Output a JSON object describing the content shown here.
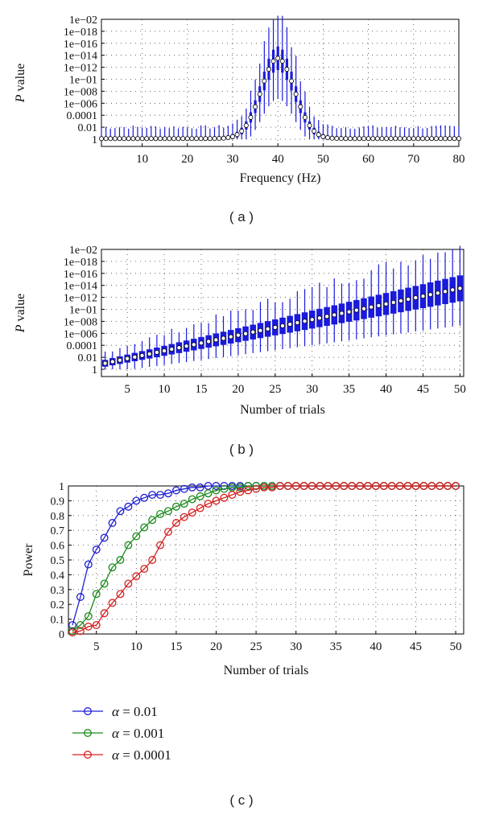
{
  "chart_data": [
    {
      "id": "a",
      "type": "boxplot",
      "caption": "( a )",
      "xlabel": "Frequency (Hz)",
      "ylabel": "P value",
      "xlim": [
        1,
        80
      ],
      "xticks": [
        10,
        20,
        30,
        40,
        50,
        60,
        70,
        80
      ],
      "ytick_labels": [
        "1",
        "0.01",
        "0.0001",
        "1e−006",
        "1e−008",
        "1e−01",
        "1e−012",
        "1e−014",
        "1e−016",
        "1e−018",
        "1e−02"
      ],
      "ylim_neglog10": [
        0,
        20
      ],
      "grid": true,
      "peak_frequency_hz": 40,
      "peak_median_neglog10": 13.5,
      "baseline_median_neglog10": 0.1,
      "color": "#1a1adb"
    },
    {
      "id": "b",
      "type": "boxplot",
      "caption": "( b )",
      "xlabel": "Number of trials",
      "ylabel": "P value",
      "xlim": [
        1.5,
        50.5
      ],
      "xticks": [
        5,
        10,
        15,
        20,
        25,
        30,
        35,
        40,
        45,
        50
      ],
      "ytick_labels": [
        "1",
        "0.01",
        "0.0001",
        "1e−006",
        "1e−008",
        "1e−01",
        "1e−012",
        "1e−014",
        "1e−016",
        "1e−018",
        "1e−02"
      ],
      "ylim_neglog10": [
        0,
        20
      ],
      "grid": true,
      "trials_range": [
        2,
        50
      ],
      "median_neglog10_at_start": 1.0,
      "median_neglog10_at_end": 13.5,
      "color": "#1a1adb"
    },
    {
      "id": "c",
      "type": "line",
      "caption": "( c )",
      "xlabel": "Number of trials",
      "ylabel": "Power",
      "xlim": [
        1.5,
        51
      ],
      "ylim": [
        0,
        1
      ],
      "xticks": [
        5,
        10,
        15,
        20,
        25,
        30,
        35,
        40,
        45,
        50
      ],
      "yticks": [
        0,
        0.1,
        0.2,
        0.3,
        0.4,
        0.5,
        0.6,
        0.7,
        0.8,
        0.9,
        1
      ],
      "ytick_labels": [
        "0",
        "0.1",
        "0.2",
        "0.3",
        "0.4",
        "0.5",
        "0.6",
        "0.7",
        "0.8",
        "0.9",
        "1"
      ],
      "grid": true,
      "x": [
        2,
        3,
        4,
        5,
        6,
        7,
        8,
        9,
        10,
        11,
        12,
        13,
        14,
        15,
        16,
        17,
        18,
        19,
        20,
        21,
        22,
        23,
        24,
        25,
        26,
        27,
        28,
        29,
        30,
        31,
        32,
        33,
        34,
        35,
        36,
        37,
        38,
        39,
        40,
        41,
        42,
        43,
        44,
        45,
        46,
        47,
        48,
        49,
        50
      ],
      "series": [
        {
          "name": "α = 0.01",
          "color": "#1f1fd1",
          "values": [
            0.06,
            0.25,
            0.47,
            0.57,
            0.65,
            0.75,
            0.83,
            0.86,
            0.9,
            0.92,
            0.94,
            0.94,
            0.95,
            0.97,
            0.98,
            0.99,
            0.99,
            1,
            1,
            1,
            1,
            1,
            1,
            1,
            1,
            1,
            1,
            1,
            1,
            1,
            1,
            1,
            1,
            1,
            1,
            1,
            1,
            1,
            1,
            1,
            1,
            1,
            1,
            1,
            1,
            1,
            1,
            1,
            1
          ]
        },
        {
          "name": "α = 0.001",
          "color": "#1a8a1a",
          "values": [
            0.02,
            0.06,
            0.12,
            0.27,
            0.34,
            0.45,
            0.5,
            0.6,
            0.66,
            0.72,
            0.77,
            0.81,
            0.83,
            0.86,
            0.88,
            0.91,
            0.93,
            0.95,
            0.97,
            0.98,
            0.99,
            0.99,
            1,
            1,
            1,
            1,
            1,
            1,
            1,
            1,
            1,
            1,
            1,
            1,
            1,
            1,
            1,
            1,
            1,
            1,
            1,
            1,
            1,
            1,
            1,
            1,
            1,
            1,
            1
          ]
        },
        {
          "name": "α = 0.0001",
          "color": "#d42020",
          "values": [
            0.01,
            0.02,
            0.05,
            0.06,
            0.14,
            0.21,
            0.27,
            0.34,
            0.39,
            0.44,
            0.5,
            0.6,
            0.69,
            0.75,
            0.79,
            0.82,
            0.85,
            0.88,
            0.9,
            0.92,
            0.94,
            0.96,
            0.97,
            0.98,
            0.99,
            0.99,
            1,
            1,
            1,
            1,
            1,
            1,
            1,
            1,
            1,
            1,
            1,
            1,
            1,
            1,
            1,
            1,
            1,
            1,
            1,
            1,
            1,
            1,
            1
          ]
        }
      ]
    }
  ]
}
